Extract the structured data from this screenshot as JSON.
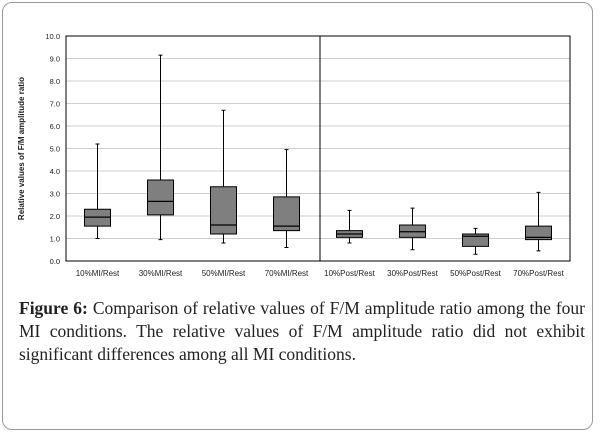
{
  "chart_data": {
    "type": "box",
    "ylabel": "Relative values of F/M amplitude ratio",
    "ylim": [
      0,
      10
    ],
    "yticks": [
      "0.0",
      "1.0",
      "2.0",
      "3.0",
      "4.0",
      "5.0",
      "6.0",
      "7.0",
      "8.0",
      "9.0",
      "10.0"
    ],
    "grid": true,
    "categories": [
      "10%MI/Rest",
      "30%MI/Rest",
      "50%MI/Rest",
      "70%MI/Rest",
      "10%Post/Rest",
      "30%Post/Rest",
      "50%Post/Rest",
      "70%Post/Rest"
    ],
    "boxes": [
      {
        "min": 1.0,
        "q1": 1.55,
        "median": 1.95,
        "q3": 2.3,
        "max": 5.2
      },
      {
        "min": 0.95,
        "q1": 2.05,
        "median": 2.65,
        "q3": 3.6,
        "max": 9.15
      },
      {
        "min": 0.8,
        "q1": 1.2,
        "median": 1.6,
        "q3": 3.3,
        "max": 6.7
      },
      {
        "min": 0.6,
        "q1": 1.35,
        "median": 1.55,
        "q3": 2.85,
        "max": 4.95
      },
      {
        "min": 0.8,
        "q1": 1.05,
        "median": 1.2,
        "q3": 1.35,
        "max": 2.25
      },
      {
        "min": 0.5,
        "q1": 1.05,
        "median": 1.3,
        "q3": 1.6,
        "max": 2.35
      },
      {
        "min": 0.3,
        "q1": 0.65,
        "median": 1.1,
        "q3": 1.2,
        "max": 1.45
      },
      {
        "min": 0.45,
        "q1": 0.95,
        "median": 1.05,
        "q3": 1.55,
        "max": 3.05
      }
    ],
    "colors": {
      "box": "#7f7f7f",
      "line": "#000000",
      "grid": "#bfbfbf"
    }
  },
  "caption": {
    "label": "Figure 6:",
    "text": " Comparison of relative values of F/M amplitude ratio among the four MI conditions. The relative values of F/M amplitude ratio did not exhibit significant differences among all MI conditions."
  }
}
